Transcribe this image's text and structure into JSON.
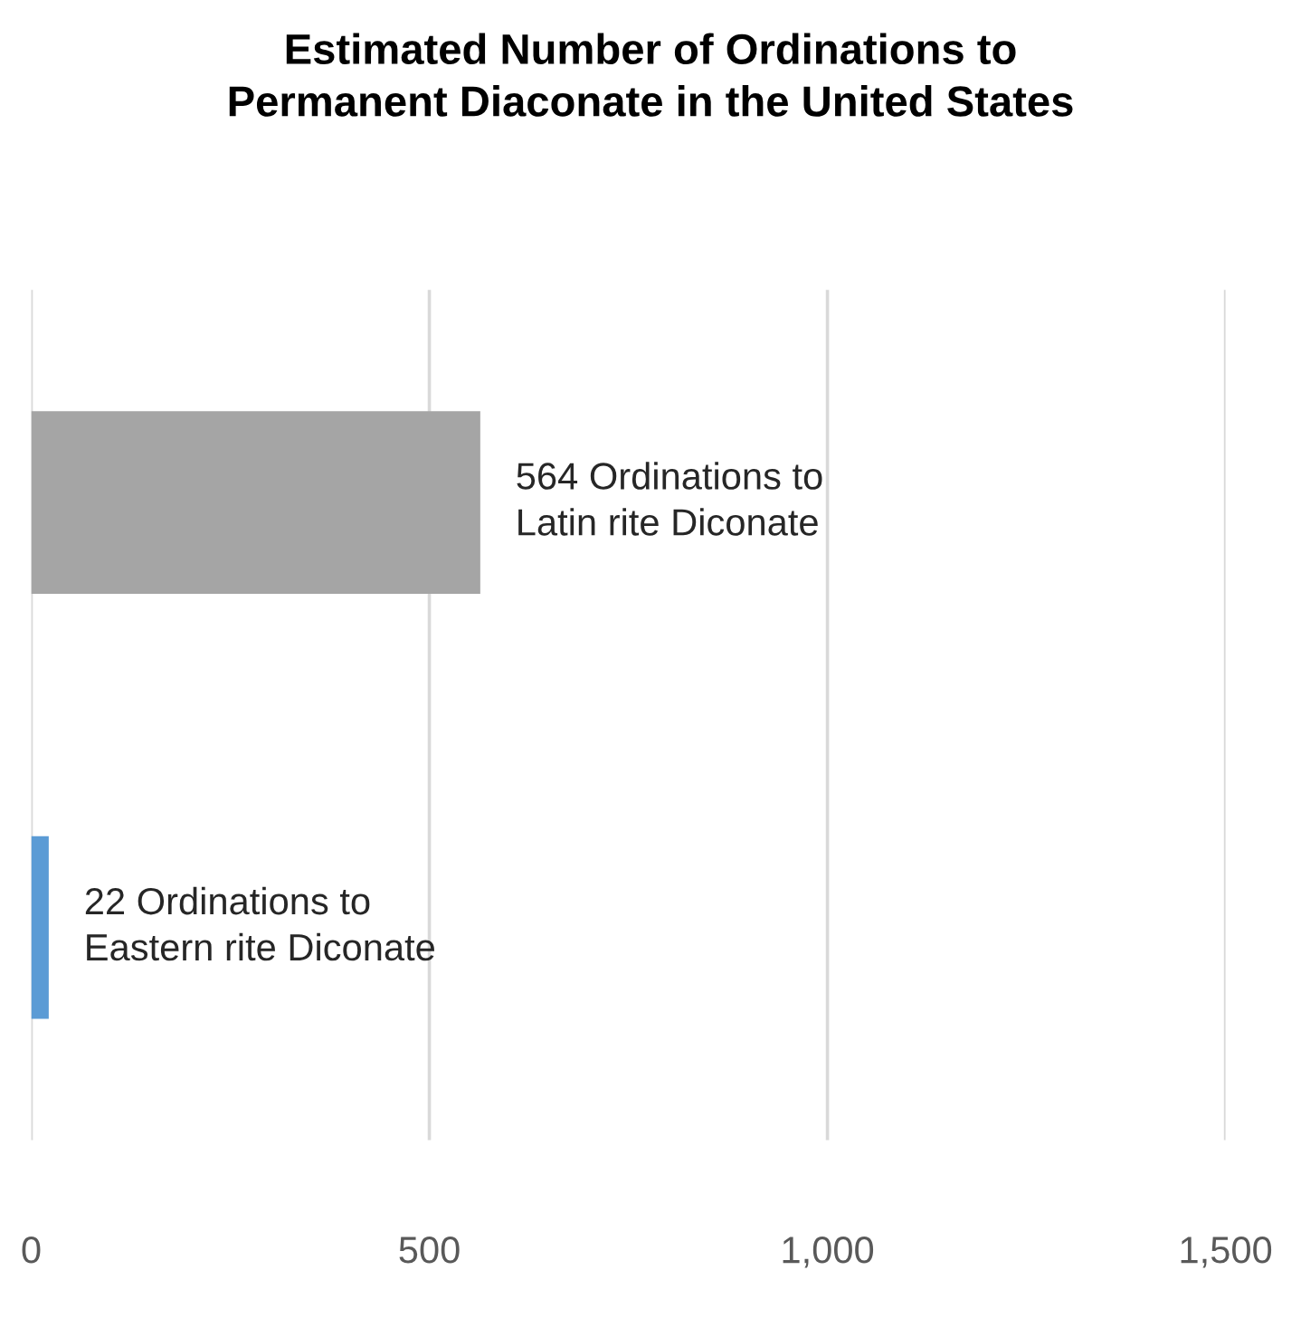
{
  "chart_data": {
    "type": "bar",
    "orientation": "horizontal",
    "title": "Estimated Number of Ordinations to\nPermanent Diaconate in the United States",
    "categories": [
      null,
      null
    ],
    "values": [
      564,
      22
    ],
    "colors": [
      "#a5a5a5",
      "#5b9bd5"
    ],
    "value_labels": [
      "564 Ordinations to\nLatin rite Diconate",
      "22 Ordinations to\nEastern rite Diconate"
    ],
    "xlim": [
      0,
      1500
    ],
    "xticks": [
      0,
      500,
      {
        "value": 1000,
        "label": "1,000"
      },
      {
        "value": 1500,
        "label": "1,500"
      }
    ],
    "grid": "x"
  }
}
